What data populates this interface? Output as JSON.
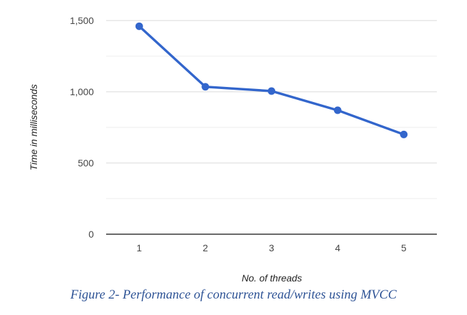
{
  "chart_data": {
    "type": "line",
    "x": [
      1,
      2,
      3,
      4,
      5
    ],
    "series": [
      {
        "values": [
          1460,
          1035,
          1005,
          870,
          700
        ]
      }
    ],
    "xlabel": "No. of threads",
    "ylabel": "Time in milliseconds",
    "ylim": [
      0,
      1500
    ],
    "yticks": [
      0,
      500,
      1000,
      1500
    ],
    "yticklabels": [
      "0",
      "500",
      "1,000",
      "1,500"
    ],
    "xticklabels": [
      "1",
      "2",
      "3",
      "4",
      "5"
    ],
    "grid": true,
    "line_color": "#3366cc",
    "grid_color": "#dddddd",
    "baseline_color": "#333333"
  },
  "caption": "Figure 2- Performance of concurrent read/writes using MVCC"
}
